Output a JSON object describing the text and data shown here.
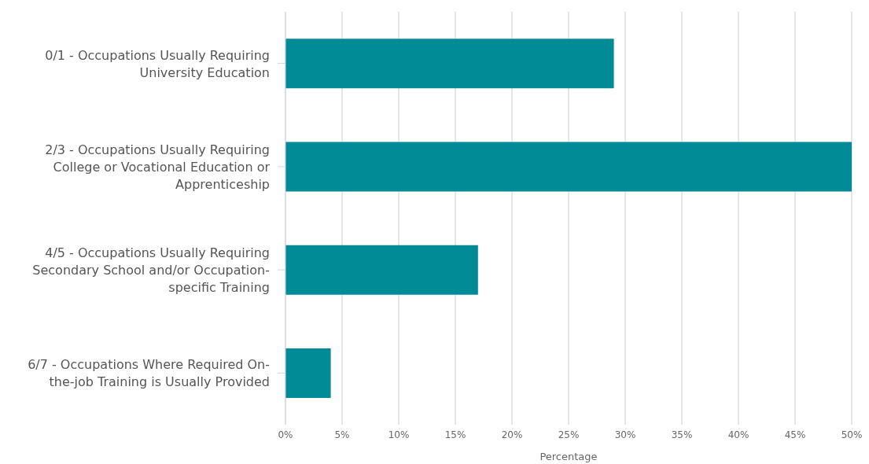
{
  "chart_data": {
    "type": "bar",
    "orientation": "horizontal",
    "xlabel": "Percentage",
    "categories": [
      "0/1 - Occupations Usually Requiring University Education",
      "2/3 - Occupations Usually Requiring College or Vocational Education or Apprenticeship",
      "4/5 - Occupations Usually Requiring Secondary School and/or Occupation-specific Training",
      "6/7 - Occupations Where Required On-the-job Training is Usually Provided"
    ],
    "values": [
      29,
      50,
      17,
      4
    ],
    "color": "#008b96",
    "xlim": [
      0,
      50
    ],
    "xticks": [
      {
        "value": 0,
        "label": "0%"
      },
      {
        "value": 5,
        "label": "5%"
      },
      {
        "value": 10,
        "label": "10%"
      },
      {
        "value": 15,
        "label": "15%"
      },
      {
        "value": 20,
        "label": "20%"
      },
      {
        "value": 25,
        "label": "25%"
      },
      {
        "value": 30,
        "label": "30%"
      },
      {
        "value": 35,
        "label": "35%"
      },
      {
        "value": 40,
        "label": "40%"
      },
      {
        "value": 45,
        "label": "45%"
      },
      {
        "value": 50,
        "label": "50%"
      }
    ],
    "grid": "x",
    "legend": false
  }
}
